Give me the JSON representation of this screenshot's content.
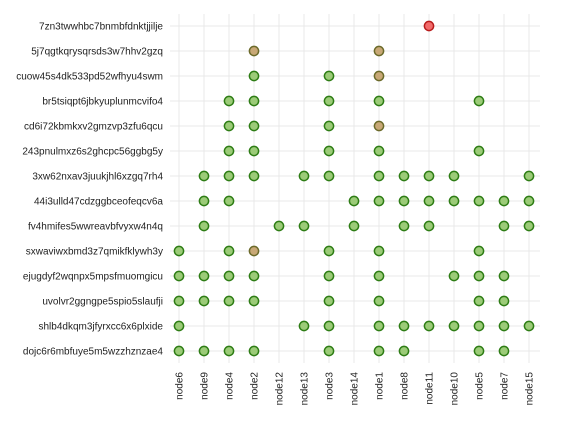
{
  "chart_data": {
    "type": "scatter",
    "title": "",
    "xlabel": "",
    "ylabel": "",
    "grid": true,
    "legend": "none",
    "x_categories": [
      "node6",
      "node9",
      "node4",
      "node2",
      "node12",
      "node13",
      "node3",
      "node14",
      "node1",
      "node8",
      "node11",
      "node10",
      "node5",
      "node7",
      "node15"
    ],
    "y_categories": [
      "7zn3twwhbc7bnmbfdnktjjilje",
      "5j7qgtkqrysqrsds3w7hhv2gzq",
      "cuow45s4dk533pd52wfhyu4swm",
      "br5tsiqpt6jbkyuplunmcvifo4",
      "cd6i72kbmkxv2gmzvp3zfu6qcu",
      "243pnulmxz6s2ghcpc56ggbg5y",
      "3xw62nxav3juukjhl6xzgq7rh4",
      "44i3ulld47cdzggbceofeqcv6a",
      "fv4hmifes5wwreavbfvyxw4n4q",
      "sxwaviwxbmd3z7qmikfklywh3y",
      "ejugdyf2wqnpx5mpsfmuomgicu",
      "uvolvr2ggngpe5spio5slaufji",
      "shlb4dkqm3jfyrxcc6x6plxide",
      "dojc6r6mbfuye5m5wzzhznzae4"
    ],
    "colors": {
      "green_fill": "#9ccb78",
      "green_stroke": "#2e7d15",
      "tan_fill": "#c8a876",
      "tan_stroke": "#6b6a2a",
      "red_fill": "#f26b6b",
      "red_stroke": "#b81c1c"
    },
    "points": [
      {
        "y": "7zn3twwhbc7bnmbfdnktjjilje",
        "x": "node11",
        "status": "red"
      },
      {
        "y": "5j7qgtkqrysqrsds3w7hhv2gzq",
        "x": "node2",
        "status": "tan"
      },
      {
        "y": "5j7qgtkqrysqrsds3w7hhv2gzq",
        "x": "node1",
        "status": "tan"
      },
      {
        "y": "cuow45s4dk533pd52wfhyu4swm",
        "x": "node2",
        "status": "green"
      },
      {
        "y": "cuow45s4dk533pd52wfhyu4swm",
        "x": "node3",
        "status": "green"
      },
      {
        "y": "cuow45s4dk533pd52wfhyu4swm",
        "x": "node1",
        "status": "tan"
      },
      {
        "y": "br5tsiqpt6jbkyuplunmcvifo4",
        "x": "node4",
        "status": "green"
      },
      {
        "y": "br5tsiqpt6jbkyuplunmcvifo4",
        "x": "node2",
        "status": "green"
      },
      {
        "y": "br5tsiqpt6jbkyuplunmcvifo4",
        "x": "node3",
        "status": "green"
      },
      {
        "y": "br5tsiqpt6jbkyuplunmcvifo4",
        "x": "node1",
        "status": "green"
      },
      {
        "y": "br5tsiqpt6jbkyuplunmcvifo4",
        "x": "node5",
        "status": "green"
      },
      {
        "y": "cd6i72kbmkxv2gmzvp3zfu6qcu",
        "x": "node4",
        "status": "green"
      },
      {
        "y": "cd6i72kbmkxv2gmzvp3zfu6qcu",
        "x": "node2",
        "status": "green"
      },
      {
        "y": "cd6i72kbmkxv2gmzvp3zfu6qcu",
        "x": "node3",
        "status": "green"
      },
      {
        "y": "cd6i72kbmkxv2gmzvp3zfu6qcu",
        "x": "node1",
        "status": "tan"
      },
      {
        "y": "243pnulmxz6s2ghcpc56ggbg5y",
        "x": "node4",
        "status": "green"
      },
      {
        "y": "243pnulmxz6s2ghcpc56ggbg5y",
        "x": "node2",
        "status": "green"
      },
      {
        "y": "243pnulmxz6s2ghcpc56ggbg5y",
        "x": "node3",
        "status": "green"
      },
      {
        "y": "243pnulmxz6s2ghcpc56ggbg5y",
        "x": "node1",
        "status": "green"
      },
      {
        "y": "243pnulmxz6s2ghcpc56ggbg5y",
        "x": "node5",
        "status": "green"
      },
      {
        "y": "3xw62nxav3juukjhl6xzgq7rh4",
        "x": "node9",
        "status": "green"
      },
      {
        "y": "3xw62nxav3juukjhl6xzgq7rh4",
        "x": "node4",
        "status": "green"
      },
      {
        "y": "3xw62nxav3juukjhl6xzgq7rh4",
        "x": "node2",
        "status": "green"
      },
      {
        "y": "3xw62nxav3juukjhl6xzgq7rh4",
        "x": "node13",
        "status": "green"
      },
      {
        "y": "3xw62nxav3juukjhl6xzgq7rh4",
        "x": "node3",
        "status": "green"
      },
      {
        "y": "3xw62nxav3juukjhl6xzgq7rh4",
        "x": "node1",
        "status": "green"
      },
      {
        "y": "3xw62nxav3juukjhl6xzgq7rh4",
        "x": "node8",
        "status": "green"
      },
      {
        "y": "3xw62nxav3juukjhl6xzgq7rh4",
        "x": "node11",
        "status": "green"
      },
      {
        "y": "3xw62nxav3juukjhl6xzgq7rh4",
        "x": "node10",
        "status": "green"
      },
      {
        "y": "3xw62nxav3juukjhl6xzgq7rh4",
        "x": "node15",
        "status": "green"
      },
      {
        "y": "44i3ulld47cdzggbceofeqcv6a",
        "x": "node9",
        "status": "green"
      },
      {
        "y": "44i3ulld47cdzggbceofeqcv6a",
        "x": "node4",
        "status": "green"
      },
      {
        "y": "44i3ulld47cdzggbceofeqcv6a",
        "x": "node14",
        "status": "green"
      },
      {
        "y": "44i3ulld47cdzggbceofeqcv6a",
        "x": "node1",
        "status": "green"
      },
      {
        "y": "44i3ulld47cdzggbceofeqcv6a",
        "x": "node8",
        "status": "green"
      },
      {
        "y": "44i3ulld47cdzggbceofeqcv6a",
        "x": "node11",
        "status": "green"
      },
      {
        "y": "44i3ulld47cdzggbceofeqcv6a",
        "x": "node10",
        "status": "green"
      },
      {
        "y": "44i3ulld47cdzggbceofeqcv6a",
        "x": "node5",
        "status": "green"
      },
      {
        "y": "44i3ulld47cdzggbceofeqcv6a",
        "x": "node7",
        "status": "green"
      },
      {
        "y": "44i3ulld47cdzggbceofeqcv6a",
        "x": "node15",
        "status": "green"
      },
      {
        "y": "fv4hmifes5wwreavbfvyxw4n4q",
        "x": "node9",
        "status": "green"
      },
      {
        "y": "fv4hmifes5wwreavbfvyxw4n4q",
        "x": "node12",
        "status": "green"
      },
      {
        "y": "fv4hmifes5wwreavbfvyxw4n4q",
        "x": "node13",
        "status": "green"
      },
      {
        "y": "fv4hmifes5wwreavbfvyxw4n4q",
        "x": "node14",
        "status": "green"
      },
      {
        "y": "fv4hmifes5wwreavbfvyxw4n4q",
        "x": "node8",
        "status": "green"
      },
      {
        "y": "fv4hmifes5wwreavbfvyxw4n4q",
        "x": "node11",
        "status": "green"
      },
      {
        "y": "fv4hmifes5wwreavbfvyxw4n4q",
        "x": "node7",
        "status": "green"
      },
      {
        "y": "fv4hmifes5wwreavbfvyxw4n4q",
        "x": "node15",
        "status": "green"
      },
      {
        "y": "sxwaviwxbmd3z7qmikfklywh3y",
        "x": "node6",
        "status": "green"
      },
      {
        "y": "sxwaviwxbmd3z7qmikfklywh3y",
        "x": "node4",
        "status": "green"
      },
      {
        "y": "sxwaviwxbmd3z7qmikfklywh3y",
        "x": "node2",
        "status": "tan"
      },
      {
        "y": "sxwaviwxbmd3z7qmikfklywh3y",
        "x": "node3",
        "status": "green"
      },
      {
        "y": "sxwaviwxbmd3z7qmikfklywh3y",
        "x": "node1",
        "status": "green"
      },
      {
        "y": "sxwaviwxbmd3z7qmikfklywh3y",
        "x": "node5",
        "status": "green"
      },
      {
        "y": "ejugdyf2wqnpx5mpsfmuomgicu",
        "x": "node6",
        "status": "green"
      },
      {
        "y": "ejugdyf2wqnpx5mpsfmuomgicu",
        "x": "node9",
        "status": "green"
      },
      {
        "y": "ejugdyf2wqnpx5mpsfmuomgicu",
        "x": "node4",
        "status": "green"
      },
      {
        "y": "ejugdyf2wqnpx5mpsfmuomgicu",
        "x": "node2",
        "status": "green"
      },
      {
        "y": "ejugdyf2wqnpx5mpsfmuomgicu",
        "x": "node3",
        "status": "green"
      },
      {
        "y": "ejugdyf2wqnpx5mpsfmuomgicu",
        "x": "node1",
        "status": "green"
      },
      {
        "y": "ejugdyf2wqnpx5mpsfmuomgicu",
        "x": "node10",
        "status": "green"
      },
      {
        "y": "ejugdyf2wqnpx5mpsfmuomgicu",
        "x": "node5",
        "status": "green"
      },
      {
        "y": "ejugdyf2wqnpx5mpsfmuomgicu",
        "x": "node7",
        "status": "green"
      },
      {
        "y": "uvolvr2ggngpe5spio5slaufji",
        "x": "node6",
        "status": "green"
      },
      {
        "y": "uvolvr2ggngpe5spio5slaufji",
        "x": "node9",
        "status": "green"
      },
      {
        "y": "uvolvr2ggngpe5spio5slaufji",
        "x": "node4",
        "status": "green"
      },
      {
        "y": "uvolvr2ggngpe5spio5slaufji",
        "x": "node2",
        "status": "green"
      },
      {
        "y": "uvolvr2ggngpe5spio5slaufji",
        "x": "node3",
        "status": "green"
      },
      {
        "y": "uvolvr2ggngpe5spio5slaufji",
        "x": "node1",
        "status": "green"
      },
      {
        "y": "uvolvr2ggngpe5spio5slaufji",
        "x": "node5",
        "status": "green"
      },
      {
        "y": "uvolvr2ggngpe5spio5slaufji",
        "x": "node7",
        "status": "green"
      },
      {
        "y": "shlb4dkqm3jfyrxcc6x6plxide",
        "x": "node6",
        "status": "green"
      },
      {
        "y": "shlb4dkqm3jfyrxcc6x6plxide",
        "x": "node13",
        "status": "green"
      },
      {
        "y": "shlb4dkqm3jfyrxcc6x6plxide",
        "x": "node3",
        "status": "green"
      },
      {
        "y": "shlb4dkqm3jfyrxcc6x6plxide",
        "x": "node1",
        "status": "green"
      },
      {
        "y": "shlb4dkqm3jfyrxcc6x6plxide",
        "x": "node8",
        "status": "green"
      },
      {
        "y": "shlb4dkqm3jfyrxcc6x6plxide",
        "x": "node11",
        "status": "green"
      },
      {
        "y": "shlb4dkqm3jfyrxcc6x6plxide",
        "x": "node10",
        "status": "green"
      },
      {
        "y": "shlb4dkqm3jfyrxcc6x6plxide",
        "x": "node5",
        "status": "green"
      },
      {
        "y": "shlb4dkqm3jfyrxcc6x6plxide",
        "x": "node7",
        "status": "green"
      },
      {
        "y": "shlb4dkqm3jfyrxcc6x6plxide",
        "x": "node15",
        "status": "green"
      },
      {
        "y": "dojc6r6mbfuye5m5wzzhznzae4",
        "x": "node6",
        "status": "green"
      },
      {
        "y": "dojc6r6mbfuye5m5wzzhznzae4",
        "x": "node9",
        "status": "green"
      },
      {
        "y": "dojc6r6mbfuye5m5wzzhznzae4",
        "x": "node4",
        "status": "green"
      },
      {
        "y": "dojc6r6mbfuye5m5wzzhznzae4",
        "x": "node2",
        "status": "green"
      },
      {
        "y": "dojc6r6mbfuye5m5wzzhznzae4",
        "x": "node3",
        "status": "green"
      },
      {
        "y": "dojc6r6mbfuye5m5wzzhznzae4",
        "x": "node1",
        "status": "green"
      },
      {
        "y": "dojc6r6mbfuye5m5wzzhznzae4",
        "x": "node8",
        "status": "green"
      },
      {
        "y": "dojc6r6mbfuye5m5wzzhznzae4",
        "x": "node5",
        "status": "green"
      },
      {
        "y": "dojc6r6mbfuye5m5wzzhznzae4",
        "x": "node7",
        "status": "green"
      }
    ]
  }
}
